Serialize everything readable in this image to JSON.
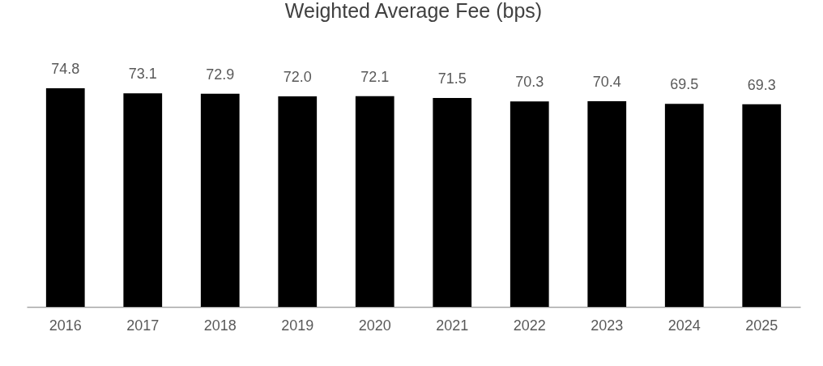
{
  "chart_data": {
    "type": "bar",
    "title": "Weighted Average Fee (bps)",
    "categories": [
      "2016",
      "2017",
      "2018",
      "2019",
      "2020",
      "2021",
      "2022",
      "2023",
      "2024",
      "2025"
    ],
    "values": [
      74.8,
      73.1,
      72.9,
      72.0,
      72.1,
      71.5,
      70.3,
      70.4,
      69.5,
      69.3
    ],
    "value_labels": [
      "74.8",
      "73.1",
      "72.9",
      "72.0",
      "72.1",
      "71.5",
      "70.3",
      "70.4",
      "69.5",
      "69.3"
    ],
    "color": "#000000",
    "tick_labels": "x"
  }
}
